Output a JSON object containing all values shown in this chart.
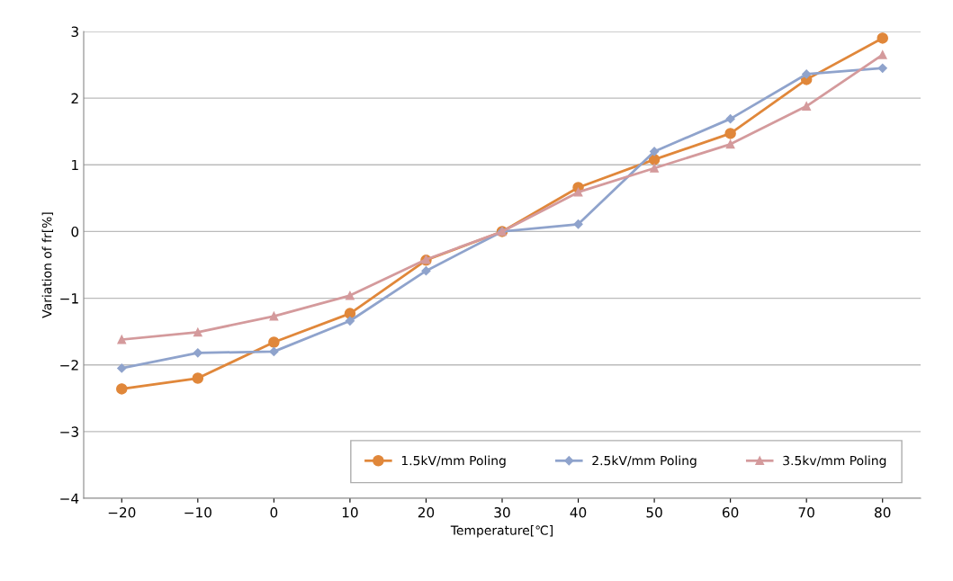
{
  "chart_data": {
    "type": "line",
    "xlabel": "Temperature[℃]",
    "ylabel": "Variation of fr[%]",
    "categories": [
      "−20",
      "−10",
      "0",
      "10",
      "20",
      "30",
      "40",
      "50",
      "60",
      "70",
      "80"
    ],
    "series": [
      {
        "name": "1.5kV/mm Poling",
        "color": "#e0873a",
        "marker": "circle",
        "values": [
          -2.36,
          -2.2,
          -1.66,
          -1.23,
          -0.43,
          0,
          0.66,
          1.08,
          1.47,
          2.28,
          2.9
        ]
      },
      {
        "name": "2.5kV/mm Poling",
        "color": "#8fa3cc",
        "marker": "diamond",
        "values": [
          -2.05,
          -1.82,
          -1.8,
          -1.34,
          -0.59,
          0,
          0.11,
          1.2,
          1.69,
          2.36,
          2.45
        ]
      },
      {
        "name": "3.5kv/mm Poling",
        "color": "#d49a9c",
        "marker": "triangle",
        "values": [
          -1.62,
          -1.51,
          -1.27,
          -0.96,
          -0.42,
          0,
          0.59,
          0.95,
          1.31,
          1.88,
          2.65
        ]
      }
    ],
    "ylim": [
      -4,
      3
    ],
    "yticks": [
      {
        "value": -4,
        "label": "−4"
      },
      {
        "value": -3,
        "label": "−3"
      },
      {
        "value": -2,
        "label": "−2"
      },
      {
        "value": -1,
        "label": "−1"
      },
      0,
      1,
      2,
      3
    ],
    "grid": "y",
    "legend": "bottom right",
    "line_style": "solid"
  }
}
